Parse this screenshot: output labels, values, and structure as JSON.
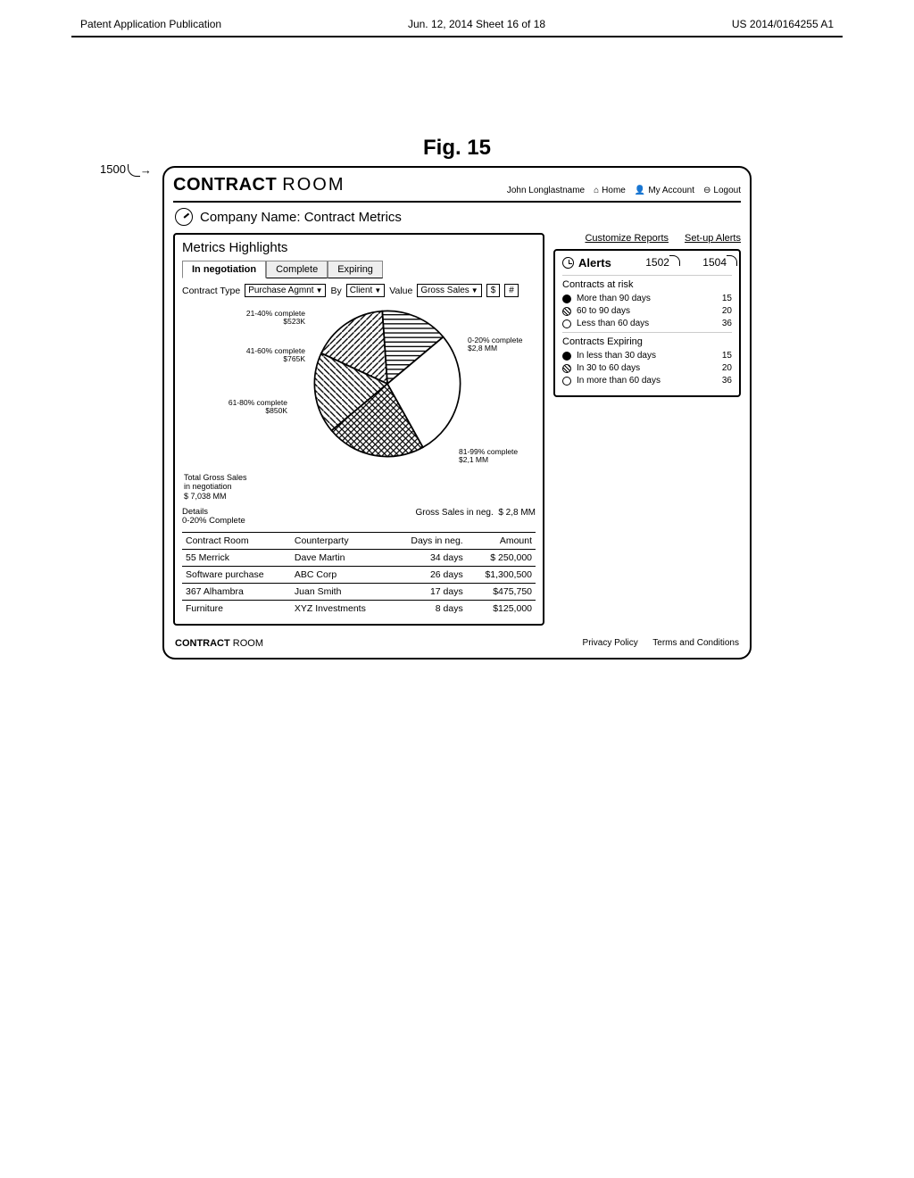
{
  "doc_header": {
    "left": "Patent Application Publication",
    "center": "Jun. 12, 2014  Sheet 16 of 18",
    "right": "US 2014/0164255 A1"
  },
  "figure_label": "Fig. 15",
  "callouts": {
    "main": "1500",
    "c1": "1502",
    "c2": "1504"
  },
  "logo": {
    "word1": "CONTRACT",
    "word2": "ROOM"
  },
  "account": {
    "name": "John Longlastname",
    "home": "Home",
    "my_account": "My Account",
    "logout": "Logout"
  },
  "page_title": "Company Name: Contract Metrics",
  "metrics": {
    "heading": "Metrics Highlights",
    "tabs": [
      "In negotiation",
      "Complete",
      "Expiring"
    ],
    "active_tab": 0,
    "filters": {
      "contract_type_label": "Contract Type",
      "contract_type_value": "Purchase Agmnt",
      "by_label": "By",
      "by_value": "Client",
      "value_label": "Value",
      "value_value": "Gross Sales",
      "toggle_currency": "$",
      "toggle_count": "#"
    },
    "pie": {
      "colors": {
        "s0_20": "#ffffff",
        "s21_40": "#666666",
        "s41_60": "#222222",
        "s61_80": "#999999",
        "s81_99": "#cccccc"
      },
      "slices": [
        {
          "key": "s0_20",
          "label_top": "0-20% complete",
          "label_bot": "$2,8 MM",
          "pct": 28
        },
        {
          "key": "s81_99",
          "label_top": "81-99% complete",
          "label_bot": "$2,1 MM",
          "pct": 22
        },
        {
          "key": "s61_80",
          "label_top": "61-80% complete",
          "label_bot": "$850K",
          "pct": 18
        },
        {
          "key": "s41_60",
          "label_top": "41-60% complete",
          "label_bot": "$765K",
          "pct": 17
        },
        {
          "key": "s21_40",
          "label_top": "21-40% complete",
          "label_bot": "$523K",
          "pct": 15
        }
      ],
      "stroke": "#000000"
    },
    "totals": {
      "left_line1": "Total Gross Sales",
      "left_line2": "in negotiation",
      "left_value": "$ 7,038 MM",
      "right_label": "Gross Sales in neg.",
      "right_value": "$  2,8 MM"
    },
    "details": {
      "heading_line1": "Details",
      "heading_line2": "0-20% Complete",
      "columns": [
        "Contract Room",
        "Counterparty",
        "Days in neg.",
        "Amount"
      ],
      "rows": [
        [
          "55 Merrick",
          "Dave Martin",
          "34 days",
          "$ 250,000"
        ],
        [
          "Software purchase",
          "ABC Corp",
          "26 days",
          "$1,300,500"
        ],
        [
          "367 Alhambra",
          "Juan Smith",
          "17 days",
          "$475,750"
        ],
        [
          "Furniture",
          "XYZ Investments",
          "8 days",
          "$125,000"
        ]
      ]
    }
  },
  "right_links": {
    "customize": "Customize Reports",
    "setup": "Set-up Alerts"
  },
  "alerts": {
    "heading": "Alerts",
    "group1": {
      "title": "Contracts at risk",
      "rows": [
        {
          "fill": "filled",
          "label": "More than 90 days",
          "count": 15
        },
        {
          "fill": "hatch",
          "label": "60 to 90 days",
          "count": 20
        },
        {
          "fill": "open",
          "label": "Less than 60 days",
          "count": 36
        }
      ]
    },
    "group2": {
      "title": "Contracts Expiring",
      "rows": [
        {
          "fill": "filled",
          "label": "In less than 30 days",
          "count": 15
        },
        {
          "fill": "hatch",
          "label": "In 30 to 60 days",
          "count": 20
        },
        {
          "fill": "open",
          "label": "In more than 60 days",
          "count": 36
        }
      ]
    }
  },
  "footer": {
    "privacy": "Privacy Policy",
    "terms": "Terms and Conditions"
  }
}
